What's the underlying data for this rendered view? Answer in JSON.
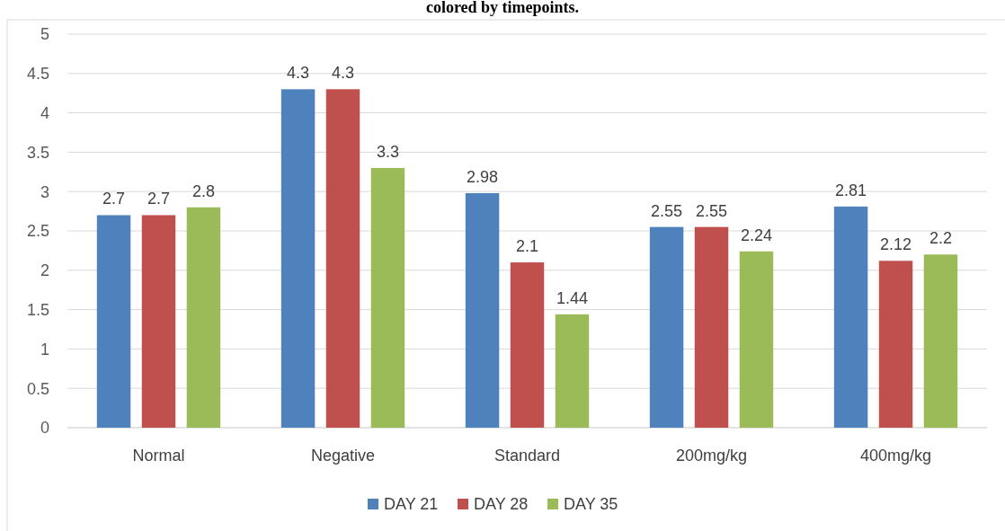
{
  "chart_data": {
    "type": "bar",
    "title": "colored by timepoints.",
    "categories": [
      "Normal",
      "Negative",
      "Standard",
      "200mg/kg",
      "400mg/kg"
    ],
    "series": [
      {
        "name": "DAY 21",
        "color": "#4f81bd",
        "values": [
          2.7,
          4.3,
          2.98,
          2.55,
          2.81
        ]
      },
      {
        "name": "DAY 28",
        "color": "#c0504d",
        "values": [
          2.7,
          4.3,
          2.1,
          2.55,
          2.12
        ]
      },
      {
        "name": "DAY 35",
        "color": "#9bbb59",
        "values": [
          2.8,
          3.3,
          1.44,
          2.24,
          2.2
        ]
      }
    ],
    "ylim": [
      0,
      5
    ],
    "yticks": [
      0,
      0.5,
      1,
      1.5,
      2,
      2.5,
      3,
      3.5,
      4,
      4.5,
      5
    ],
    "grid": "y",
    "legend": "bottom",
    "data_labels": true
  }
}
